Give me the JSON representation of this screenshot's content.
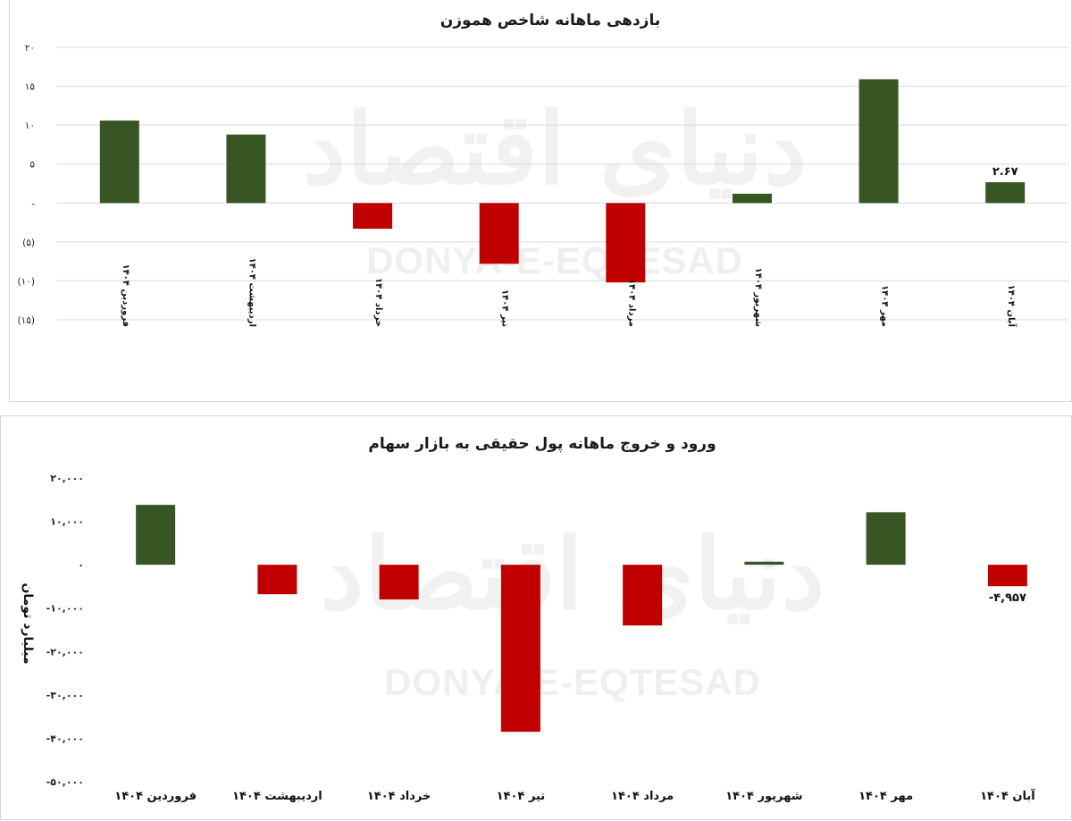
{
  "colors": {
    "positive": "#375623",
    "negative": "#c00000",
    "grid": "#d9d9d9"
  },
  "chart_data": [
    {
      "type": "bar",
      "title": "بازدهی ماهانه شاخص هموزن",
      "categories": [
        "فروردین ۱۴۰۴",
        "اردیبهشت ۱۴۰۴",
        "خرداد ۱۴۰۴",
        "تیر ۱۴۰۴",
        "مرداد ۱۴۰۴",
        "شهریور ۱۴۰۴",
        "مهر ۱۴۰۴",
        "آبان ۱۴۰۴"
      ],
      "values": [
        10.6,
        8.8,
        -3.3,
        -7.8,
        -10.2,
        1.2,
        15.9,
        2.67
      ],
      "ylim": [
        -15,
        20
      ],
      "yticks": [
        20,
        15,
        10,
        5,
        0,
        -5,
        -10,
        -15
      ],
      "ytick_labels": [
        "۲۰",
        "۱۵",
        "۱۰",
        "۵",
        "-",
        "(۵)",
        "(۱۰)",
        "(۱۵)"
      ],
      "data_labels": {
        "7": "۲.۶۷"
      },
      "grid": true,
      "watermark_fa": "دنیای اقتصاد",
      "watermark_en": "DONYA-E-EQTESAD"
    },
    {
      "type": "bar",
      "title": "ورود و خروج ماهانه پول حقیقی به بازار سهام",
      "ylabel": "میلیارد تومان",
      "categories": [
        "فروردین ۱۴۰۴",
        "اردیبهشت ۱۴۰۴",
        "خرداد ۱۴۰۴",
        "تیر ۱۴۰۴",
        "مرداد ۱۴۰۴",
        "شهریور ۱۴۰۴",
        "مهر ۱۴۰۴",
        "آبان ۱۴۰۴"
      ],
      "values": [
        13800,
        -6800,
        -8000,
        -38500,
        -14000,
        700,
        12100,
        -4957
      ],
      "ylim": [
        -50000,
        20000
      ],
      "yticks": [
        20000,
        10000,
        0,
        -10000,
        -20000,
        -30000,
        -40000,
        -50000
      ],
      "ytick_labels": [
        "۲۰,۰۰۰",
        "۱۰,۰۰۰",
        "۰",
        "-۱۰,۰۰۰",
        "-۲۰,۰۰۰",
        "-۳۰,۰۰۰",
        "-۴۰,۰۰۰",
        "-۵۰,۰۰۰"
      ],
      "data_labels": {
        "7": "-۴,۹۵۷"
      },
      "grid": false,
      "watermark_fa": "دنیای اقتصاد",
      "watermark_en": "DONYA-E-EQTESAD"
    }
  ]
}
